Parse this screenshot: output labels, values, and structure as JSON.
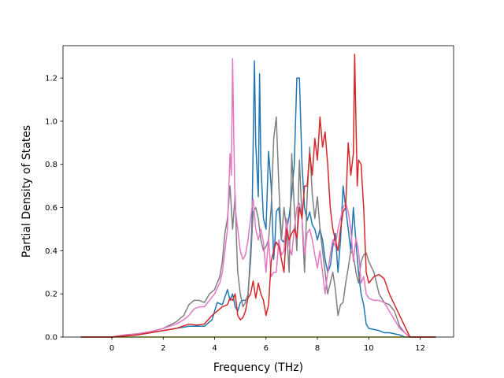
{
  "chart_data": {
    "type": "line",
    "title": "",
    "xlabel": "Frequency (THz)",
    "ylabel": "Partial Density of States",
    "xlim": [
      -1.9,
      13.3
    ],
    "ylim": [
      0.0,
      1.35
    ],
    "x_ticks": [
      "0",
      "2",
      "4",
      "6",
      "8",
      "10",
      "12"
    ],
    "y_ticks": [
      "0.0",
      "0.2",
      "0.4",
      "0.6",
      "0.8",
      "1.0",
      "1.2"
    ],
    "grid": false,
    "legend": "none",
    "colors": [
      "#1f77b4",
      "#7f7f7f",
      "#e377c2",
      "#d62728",
      "#bcbd22"
    ],
    "series": [
      {
        "color": "#1f77b4",
        "x": [
          -1.2,
          0.0,
          0.5,
          1.0,
          1.5,
          2.0,
          2.5,
          3.0,
          3.3,
          3.6,
          3.9,
          4.1,
          4.3,
          4.5,
          4.6,
          4.7,
          4.8,
          4.9,
          5.0,
          5.1,
          5.2,
          5.3,
          5.45,
          5.55,
          5.6,
          5.7,
          5.75,
          5.8,
          5.9,
          6.0,
          6.1,
          6.2,
          6.3,
          6.35,
          6.4,
          6.5,
          6.6,
          6.7,
          6.8,
          6.9,
          7.0,
          7.1,
          7.2,
          7.3,
          7.35,
          7.4,
          7.5,
          7.6,
          7.7,
          7.8,
          7.9,
          8.0,
          8.1,
          8.2,
          8.3,
          8.4,
          8.5,
          8.6,
          8.7,
          8.8,
          8.9,
          9.0,
          9.1,
          9.2,
          9.3,
          9.4,
          9.5,
          9.6,
          9.7,
          9.8,
          9.9,
          10.0,
          10.2,
          10.4,
          10.6,
          10.8,
          11.0,
          11.2,
          11.4,
          11.6,
          12.6
        ],
        "y": [
          0.0,
          0.0,
          0.005,
          0.01,
          0.02,
          0.03,
          0.04,
          0.05,
          0.05,
          0.05,
          0.08,
          0.16,
          0.15,
          0.22,
          0.17,
          0.2,
          0.14,
          0.12,
          0.16,
          0.17,
          0.17,
          0.19,
          0.5,
          1.28,
          0.9,
          0.65,
          1.22,
          0.8,
          0.55,
          0.5,
          0.86,
          0.7,
          0.36,
          0.45,
          0.58,
          0.6,
          0.45,
          0.44,
          0.5,
          0.56,
          0.66,
          0.8,
          1.2,
          1.2,
          1.0,
          0.8,
          0.6,
          0.54,
          0.58,
          0.52,
          0.5,
          0.45,
          0.5,
          0.45,
          0.36,
          0.3,
          0.33,
          0.42,
          0.48,
          0.3,
          0.45,
          0.7,
          0.6,
          0.5,
          0.4,
          0.6,
          0.44,
          0.3,
          0.2,
          0.15,
          0.06,
          0.04,
          0.035,
          0.03,
          0.02,
          0.02,
          0.015,
          0.01,
          0.0,
          0.0,
          0.0
        ]
      },
      {
        "color": "#7f7f7f",
        "x": [
          -1.2,
          0.0,
          0.5,
          1.0,
          1.5,
          2.0,
          2.5,
          2.8,
          3.0,
          3.2,
          3.4,
          3.6,
          3.8,
          4.0,
          4.2,
          4.3,
          4.4,
          4.5,
          4.6,
          4.7,
          4.8,
          4.85,
          4.9,
          5.0,
          5.1,
          5.2,
          5.3,
          5.4,
          5.5,
          5.6,
          5.7,
          5.8,
          5.9,
          6.0,
          6.1,
          6.2,
          6.3,
          6.4,
          6.5,
          6.6,
          6.7,
          6.8,
          6.9,
          7.0,
          7.1,
          7.2,
          7.3,
          7.4,
          7.5,
          7.6,
          7.7,
          7.8,
          7.9,
          8.0,
          8.1,
          8.2,
          8.3,
          8.4,
          8.5,
          8.6,
          8.7,
          8.8,
          8.9,
          9.0,
          9.1,
          9.2,
          9.3,
          9.4,
          9.5,
          9.6,
          9.7,
          9.8,
          9.9,
          10.0,
          10.2,
          10.4,
          10.6,
          10.8,
          11.0,
          11.2,
          11.4,
          11.6,
          12.6
        ],
        "y": [
          0.0,
          0.0,
          0.01,
          0.015,
          0.025,
          0.04,
          0.07,
          0.1,
          0.15,
          0.17,
          0.17,
          0.16,
          0.2,
          0.22,
          0.28,
          0.35,
          0.48,
          0.55,
          0.7,
          0.5,
          0.66,
          0.45,
          0.3,
          0.2,
          0.14,
          0.16,
          0.2,
          0.35,
          0.58,
          0.6,
          0.55,
          0.45,
          0.4,
          0.42,
          0.45,
          0.6,
          0.92,
          1.02,
          0.7,
          0.45,
          0.6,
          0.5,
          0.3,
          0.85,
          0.6,
          0.4,
          0.82,
          0.55,
          0.3,
          0.65,
          0.88,
          0.66,
          0.55,
          0.65,
          0.5,
          0.4,
          0.3,
          0.2,
          0.25,
          0.3,
          0.22,
          0.1,
          0.15,
          0.16,
          0.25,
          0.32,
          0.4,
          0.38,
          0.3,
          0.25,
          0.35,
          0.38,
          0.39,
          0.35,
          0.3,
          0.2,
          0.16,
          0.15,
          0.12,
          0.05,
          0.02,
          0.0,
          0.0
        ]
      },
      {
        "color": "#e377c2",
        "x": [
          -1.2,
          0.0,
          0.5,
          1.0,
          1.5,
          2.0,
          2.5,
          2.8,
          3.0,
          3.2,
          3.4,
          3.6,
          3.8,
          4.0,
          4.2,
          4.3,
          4.4,
          4.5,
          4.6,
          4.65,
          4.7,
          4.75,
          4.8,
          4.9,
          5.0,
          5.1,
          5.2,
          5.3,
          5.4,
          5.5,
          5.6,
          5.7,
          5.8,
          5.9,
          6.0,
          6.1,
          6.2,
          6.3,
          6.4,
          6.5,
          6.6,
          6.7,
          6.8,
          6.9,
          7.0,
          7.1,
          7.2,
          7.3,
          7.4,
          7.5,
          7.6,
          7.7,
          7.8,
          7.9,
          8.0,
          8.1,
          8.2,
          8.3,
          8.4,
          8.5,
          8.6,
          8.7,
          8.8,
          8.9,
          9.0,
          9.1,
          9.2,
          9.3,
          9.4,
          9.5,
          9.6,
          9.7,
          9.8,
          9.9,
          10.0,
          10.2,
          10.4,
          10.6,
          10.8,
          11.0,
          11.2,
          11.4,
          11.6,
          12.6
        ],
        "y": [
          0.0,
          0.0,
          0.01,
          0.015,
          0.025,
          0.04,
          0.06,
          0.08,
          0.1,
          0.13,
          0.14,
          0.14,
          0.17,
          0.2,
          0.25,
          0.3,
          0.4,
          0.5,
          0.85,
          0.75,
          1.29,
          0.9,
          0.6,
          0.5,
          0.4,
          0.36,
          0.38,
          0.45,
          0.55,
          0.64,
          0.5,
          0.45,
          0.5,
          0.44,
          0.3,
          0.46,
          0.28,
          0.3,
          0.3,
          0.45,
          0.38,
          0.4,
          0.55,
          0.42,
          0.38,
          0.5,
          0.6,
          0.62,
          0.55,
          0.38,
          0.48,
          0.5,
          0.45,
          0.38,
          0.32,
          0.4,
          0.3,
          0.2,
          0.3,
          0.38,
          0.45,
          0.42,
          0.5,
          0.55,
          0.6,
          0.62,
          0.58,
          0.5,
          0.35,
          0.46,
          0.4,
          0.25,
          0.28,
          0.2,
          0.18,
          0.17,
          0.17,
          0.16,
          0.12,
          0.08,
          0.04,
          0.02,
          0.0,
          0.0
        ]
      },
      {
        "color": "#d62728",
        "x": [
          -1.2,
          0.0,
          0.5,
          1.0,
          1.5,
          2.0,
          2.5,
          3.0,
          3.3,
          3.6,
          3.9,
          4.1,
          4.3,
          4.5,
          4.6,
          4.7,
          4.8,
          4.9,
          5.0,
          5.1,
          5.2,
          5.3,
          5.4,
          5.5,
          5.6,
          5.7,
          5.8,
          5.9,
          6.0,
          6.1,
          6.2,
          6.3,
          6.4,
          6.5,
          6.6,
          6.7,
          6.8,
          6.9,
          7.0,
          7.1,
          7.2,
          7.3,
          7.4,
          7.5,
          7.6,
          7.7,
          7.8,
          7.9,
          8.0,
          8.1,
          8.2,
          8.3,
          8.4,
          8.5,
          8.6,
          8.7,
          8.8,
          8.9,
          9.0,
          9.1,
          9.2,
          9.3,
          9.4,
          9.45,
          9.5,
          9.55,
          9.6,
          9.7,
          9.8,
          9.9,
          10.0,
          10.2,
          10.4,
          10.6,
          10.8,
          11.0,
          11.2,
          11.4,
          11.6,
          12.6
        ],
        "y": [
          0.0,
          0.0,
          0.005,
          0.01,
          0.02,
          0.03,
          0.04,
          0.06,
          0.055,
          0.06,
          0.1,
          0.12,
          0.14,
          0.15,
          0.18,
          0.17,
          0.2,
          0.1,
          0.08,
          0.09,
          0.12,
          0.18,
          0.2,
          0.26,
          0.18,
          0.25,
          0.2,
          0.17,
          0.1,
          0.15,
          0.35,
          0.4,
          0.44,
          0.42,
          0.36,
          0.3,
          0.5,
          0.45,
          0.48,
          0.5,
          0.46,
          0.6,
          0.55,
          0.7,
          0.7,
          0.85,
          0.75,
          0.92,
          0.82,
          1.02,
          0.88,
          0.95,
          0.8,
          0.6,
          0.5,
          0.45,
          0.4,
          0.5,
          0.58,
          0.6,
          0.9,
          0.75,
          0.85,
          1.31,
          1.0,
          0.7,
          0.82,
          0.8,
          0.6,
          0.3,
          0.25,
          0.28,
          0.29,
          0.27,
          0.2,
          0.15,
          0.1,
          0.05,
          0.0,
          0.0
        ]
      },
      {
        "color": "#bcbd22",
        "x": [
          -1.2,
          0.0,
          1.0,
          2.0,
          3.0,
          4.0,
          5.0,
          6.0,
          7.0,
          8.0,
          9.0,
          10.0,
          11.0,
          12.6
        ],
        "y": [
          0.0,
          0.0,
          0.0,
          0.0,
          0.0,
          0.0,
          0.0,
          0.0,
          0.0,
          0.0,
          0.0,
          0.0,
          0.0,
          0.0
        ]
      }
    ]
  }
}
